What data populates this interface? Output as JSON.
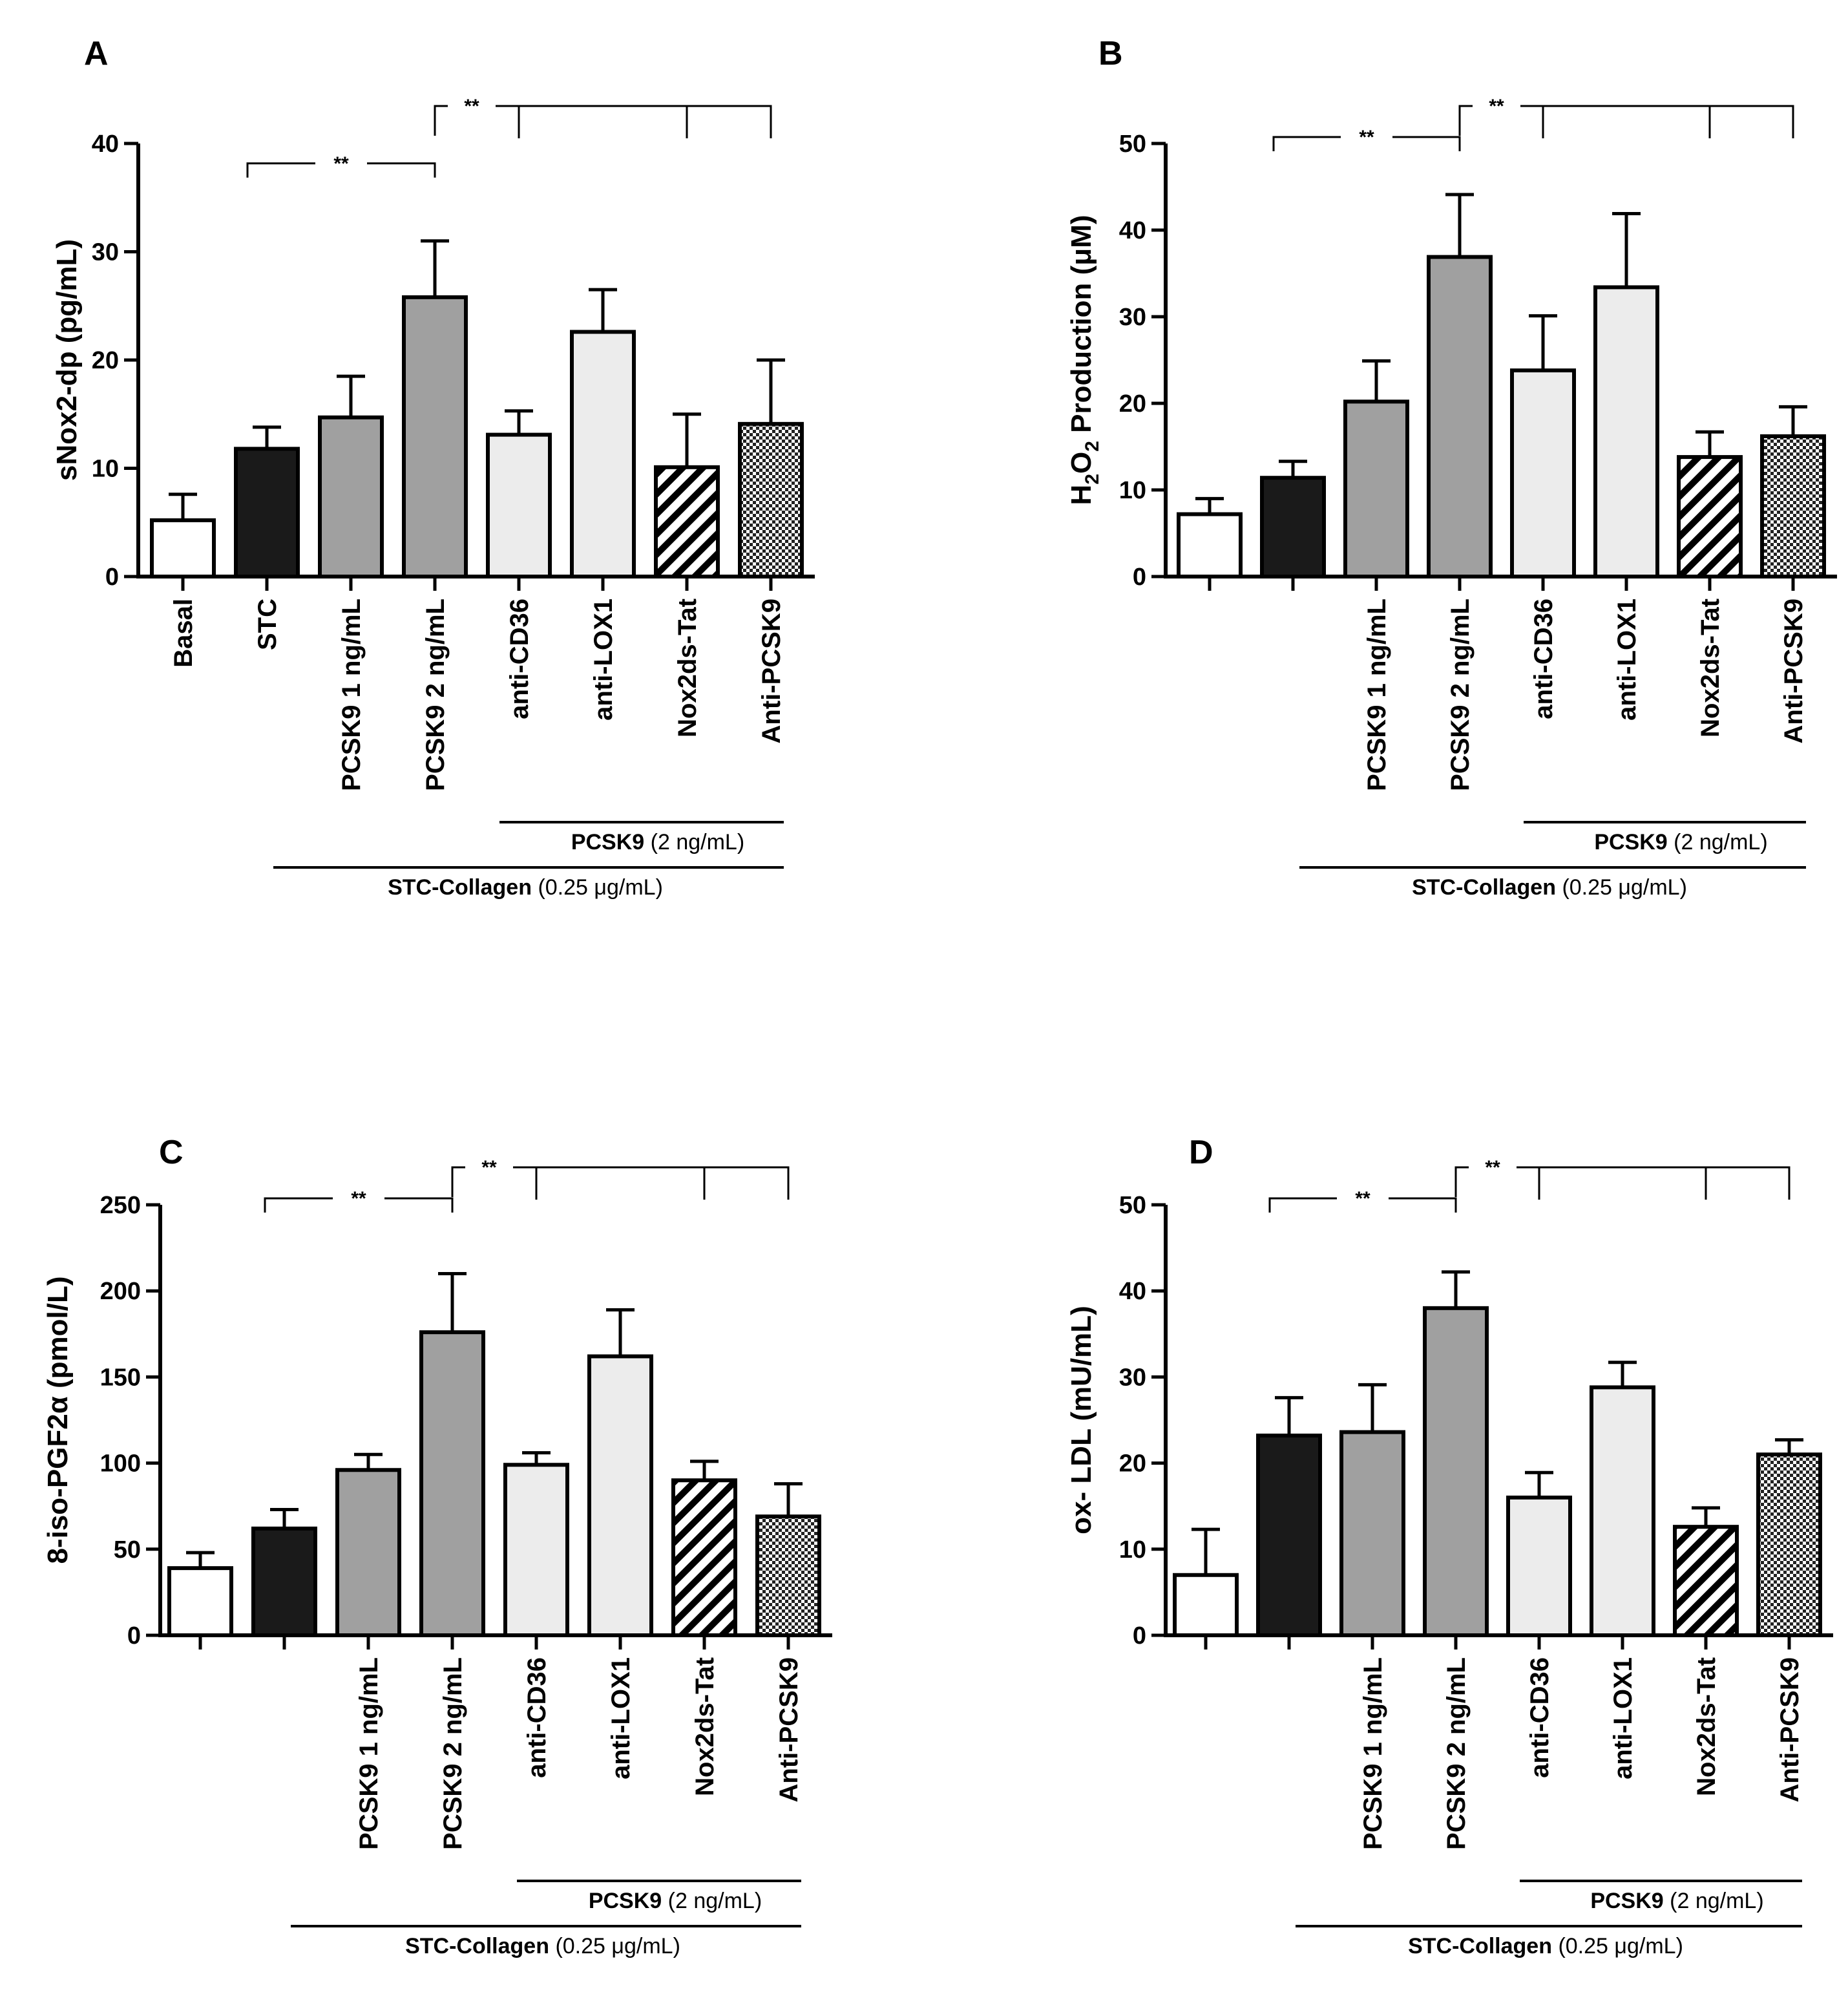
{
  "panels": [
    {
      "letter": "A",
      "ylabel": "sNox2-dp (pg/mL)",
      "ylabel_parts": [],
      "chart_data": {
        "type": "bar",
        "title": "",
        "xlabel": "",
        "ylabel": "sNox2-dp (pg/mL)",
        "ylim": [
          0,
          40
        ],
        "yticks": [
          0,
          10,
          20,
          30,
          40
        ],
        "categories": [
          "Basal",
          "STC",
          "PCSK9 1 ng/mL",
          "PCSK9 2 ng/mL",
          "anti-CD36",
          "anti-LOX1",
          "Nox2ds-Tat",
          "Anti-PCSK9"
        ],
        "values": [
          5.2,
          11.8,
          14.7,
          25.8,
          13.1,
          22.6,
          10.1,
          14.1
        ],
        "errors": [
          2.4,
          2.0,
          3.8,
          5.2,
          2.2,
          3.9,
          4.9,
          5.9
        ],
        "fills": [
          "white",
          "black",
          "darkgray",
          "darkgray",
          "lightgray",
          "lightgray",
          "hatch",
          "checker"
        ]
      },
      "cat_labels": [
        "Basal",
        "STC",
        "PCSK9 1 ng/mL",
        "PCSK9 2 ng/mL",
        "anti-CD36",
        "anti-LOX1",
        "Nox2ds-Tat",
        "Anti-PCSK9"
      ],
      "sig1": "**",
      "sig2": "**",
      "group_pcsk9_bold": "PCSK9",
      "group_pcsk9_rest": " (2 ng/mL)",
      "group_stc_bold": "STC-Collagen",
      "group_stc_rest": " (0.25 μg/mL)"
    },
    {
      "letter": "B",
      "ylabel": "H2O2 Production (μM)",
      "ylabel_parts": [
        "H",
        "2",
        "O",
        "2",
        " Production (μM)"
      ],
      "chart_data": {
        "type": "bar",
        "title": "",
        "xlabel": "",
        "ylabel": "H2O2 Production (μM)",
        "ylim": [
          0,
          50
        ],
        "yticks": [
          0,
          10,
          20,
          30,
          40,
          50
        ],
        "categories": [
          "",
          "",
          "PCSK9 1 ng/mL",
          "PCSK9 2 ng/mL",
          "anti-CD36",
          "anti-LOX1",
          "Nox2ds-Tat",
          "Anti-PCSK9"
        ],
        "values": [
          7.2,
          11.4,
          20.2,
          36.9,
          23.8,
          33.4,
          13.8,
          16.2
        ],
        "errors": [
          1.8,
          1.9,
          4.7,
          7.2,
          6.3,
          8.5,
          2.9,
          3.4
        ],
        "fills": [
          "white",
          "black",
          "darkgray",
          "darkgray",
          "lightgray",
          "lightgray",
          "hatch",
          "checker"
        ]
      },
      "cat_labels": [
        "",
        "",
        "PCSK9 1 ng/mL",
        "PCSK9 2 ng/mL",
        "anti-CD36",
        "anti-LOX1",
        "Nox2ds-Tat",
        "Anti-PCSK9"
      ],
      "sig1": "**",
      "sig2": "**",
      "group_pcsk9_bold": "PCSK9",
      "group_pcsk9_rest": " (2 ng/mL)",
      "group_stc_bold": "STC-Collagen",
      "group_stc_rest": " (0.25 μg/mL)"
    },
    {
      "letter": "C",
      "ylabel": "8-iso-PGF2α (pmol/L)",
      "ylabel_parts": [],
      "chart_data": {
        "type": "bar",
        "title": "",
        "xlabel": "",
        "ylabel": "8-iso-PGF2α (pmol/L)",
        "ylim": [
          0,
          250
        ],
        "yticks": [
          0,
          50,
          100,
          150,
          200,
          250
        ],
        "categories": [
          "",
          "",
          "PCSK9 1 ng/mL",
          "PCSK9 2 ng/mL",
          "anti-CD36",
          "anti-LOX1",
          "Nox2ds-Tat",
          "Anti-PCSK9"
        ],
        "values": [
          39,
          62,
          96,
          176,
          99,
          162,
          90,
          69
        ],
        "errors": [
          9,
          11,
          9,
          34,
          7,
          27,
          11,
          19
        ],
        "fills": [
          "white",
          "black",
          "darkgray",
          "darkgray",
          "lightgray",
          "lightgray",
          "hatch",
          "checker"
        ]
      },
      "cat_labels": [
        "",
        "",
        "PCSK9 1 ng/mL",
        "PCSK9 2 ng/mL",
        "anti-CD36",
        "anti-LOX1",
        "Nox2ds-Tat",
        "Anti-PCSK9"
      ],
      "sig1": "**",
      "sig2": "**",
      "group_pcsk9_bold": "PCSK9",
      "group_pcsk9_rest": " (2 ng/mL)",
      "group_stc_bold": "STC-Collagen",
      "group_stc_rest": " (0.25 μg/mL)"
    },
    {
      "letter": "D",
      "ylabel": "ox- LDL (mU/mL)",
      "ylabel_parts": [],
      "chart_data": {
        "type": "bar",
        "title": "",
        "xlabel": "",
        "ylabel": "ox- LDL (mU/mL)",
        "ylim": [
          0,
          50
        ],
        "yticks": [
          0,
          10,
          20,
          30,
          40,
          50
        ],
        "categories": [
          "",
          "",
          "PCSK9 1 ng/mL",
          "PCSK9 2 ng/mL",
          "anti-CD36",
          "anti-LOX1",
          "Nox2ds-Tat",
          "Anti-PCSK9"
        ],
        "values": [
          7.0,
          23.2,
          23.6,
          38.0,
          16.0,
          28.8,
          12.6,
          21.0
        ],
        "errors": [
          5.3,
          4.4,
          5.5,
          4.2,
          2.9,
          2.9,
          2.2,
          1.7
        ],
        "fills": [
          "white",
          "black",
          "darkgray",
          "darkgray",
          "lightgray",
          "lightgray",
          "hatch",
          "checker"
        ]
      },
      "cat_labels": [
        "",
        "",
        "PCSK9 1 ng/mL",
        "PCSK9 2 ng/mL",
        "anti-CD36",
        "anti-LOX1",
        "Nox2ds-Tat",
        "Anti-PCSK9"
      ],
      "sig1": "**",
      "sig2": "**",
      "group_pcsk9_bold": "PCSK9",
      "group_pcsk9_rest": " (2 ng/mL)",
      "group_stc_bold": "STC-Collagen",
      "group_stc_rest": " (0.25 μg/mL)"
    }
  ],
  "colors": {
    "white": "#ffffff",
    "black": "#1a1a1a",
    "darkgray": "#a0a0a0",
    "lightgray": "#ececec",
    "axis": "#000000"
  }
}
